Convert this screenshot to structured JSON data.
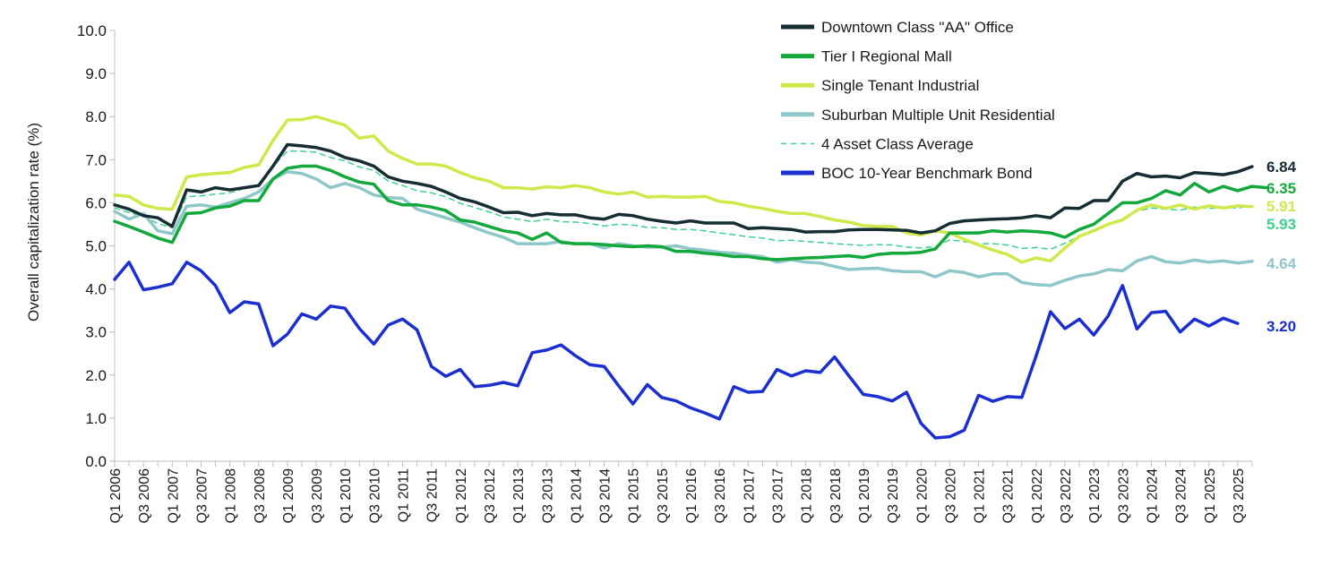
{
  "chart_data": {
    "type": "line",
    "title": "",
    "xlabel": "",
    "ylabel": "Overall capitalization rate (%)",
    "ylim": [
      0,
      10
    ],
    "yticks": [
      "0.0",
      "1.0",
      "2.0",
      "3.0",
      "4.0",
      "5.0",
      "6.0",
      "7.0",
      "8.0",
      "9.0",
      "10.0"
    ],
    "x_tick_labels": [
      "Q1 2006",
      "Q3 2006",
      "Q1 2007",
      "Q3 2007",
      "Q1 2008",
      "Q3 2008",
      "Q1 2009",
      "Q3 2009",
      "Q1 2010",
      "Q3 2010",
      "Q1 2011",
      "Q3 2011",
      "Q1 2012",
      "Q3 2012",
      "Q1 2013",
      "Q3 2013",
      "Q1 2014",
      "Q3 2014",
      "Q1 2015",
      "Q3 2015",
      "Q1 2016",
      "Q3 2016",
      "Q1 2017",
      "Q3 2017",
      "Q1 2018",
      "Q3 2018",
      "Q1 2019",
      "Q3 2019",
      "Q1 2020",
      "Q3 2020",
      "Q1 2021",
      "Q3 2021",
      "Q1 2022",
      "Q3 2022",
      "Q1 2023",
      "Q3 2023",
      "Q1 2024",
      "Q3 2024",
      "Q1 2025",
      "Q3 2025"
    ],
    "legend_position": "top-right",
    "series": [
      {
        "name": "Downtown Class \"AA\" Office",
        "color": "#152d33",
        "dashed": false,
        "end_label": "6.84",
        "values": [
          5.95,
          5.85,
          5.7,
          5.65,
          5.45,
          6.3,
          6.25,
          6.35,
          6.3,
          6.35,
          6.4,
          6.85,
          7.35,
          7.32,
          7.28,
          7.2,
          7.05,
          6.97,
          6.85,
          6.6,
          6.5,
          6.45,
          6.38,
          6.25,
          6.1,
          6.02,
          5.9,
          5.77,
          5.78,
          5.7,
          5.75,
          5.72,
          5.72,
          5.65,
          5.62,
          5.73,
          5.7,
          5.62,
          5.57,
          5.53,
          5.58,
          5.53,
          5.53,
          5.53,
          5.4,
          5.42,
          5.4,
          5.38,
          5.32,
          5.33,
          5.33,
          5.37,
          5.38,
          5.38,
          5.37,
          5.36,
          5.3,
          5.35,
          5.52,
          5.58,
          5.6,
          5.62,
          5.63,
          5.65,
          5.7,
          5.65,
          5.88,
          5.87,
          6.05,
          6.05,
          6.5,
          6.68,
          6.6,
          6.62,
          6.58,
          6.7,
          6.68,
          6.65,
          6.72,
          6.84
        ]
      },
      {
        "name": "Tier I Regional Mall",
        "color": "#12a83b",
        "dashed": false,
        "end_label": "6.35",
        "values": [
          5.57,
          5.45,
          5.32,
          5.18,
          5.08,
          5.75,
          5.77,
          5.88,
          5.92,
          6.05,
          6.05,
          6.55,
          6.8,
          6.85,
          6.85,
          6.75,
          6.6,
          6.48,
          6.43,
          6.05,
          5.95,
          5.95,
          5.9,
          5.82,
          5.6,
          5.55,
          5.45,
          5.35,
          5.3,
          5.15,
          5.3,
          5.08,
          5.05,
          5.05,
          5.03,
          5.0,
          4.98,
          5.0,
          4.98,
          4.87,
          4.87,
          4.83,
          4.8,
          4.75,
          4.75,
          4.7,
          4.68,
          4.7,
          4.72,
          4.73,
          4.75,
          4.77,
          4.73,
          4.8,
          4.83,
          4.83,
          4.85,
          4.93,
          5.3,
          5.3,
          5.3,
          5.35,
          5.32,
          5.35,
          5.33,
          5.3,
          5.2,
          5.38,
          5.5,
          5.75,
          6.0,
          6.0,
          6.1,
          6.28,
          6.18,
          6.45,
          6.25,
          6.38,
          6.28,
          6.38,
          6.35
        ]
      },
      {
        "name": "Single Tenant Industrial",
        "color": "#cfe84a",
        "dashed": false,
        "end_label": "5.91",
        "values": [
          6.18,
          6.15,
          5.95,
          5.87,
          5.85,
          6.6,
          6.65,
          6.68,
          6.7,
          6.82,
          6.88,
          7.45,
          7.92,
          7.93,
          8.0,
          7.9,
          7.8,
          7.5,
          7.55,
          7.2,
          7.03,
          6.9,
          6.9,
          6.85,
          6.7,
          6.58,
          6.5,
          6.35,
          6.35,
          6.32,
          6.37,
          6.35,
          6.4,
          6.35,
          6.25,
          6.2,
          6.25,
          6.13,
          6.15,
          6.13,
          6.13,
          6.15,
          6.03,
          6.0,
          5.92,
          5.87,
          5.8,
          5.75,
          5.75,
          5.68,
          5.6,
          5.55,
          5.47,
          5.45,
          5.45,
          5.3,
          5.25,
          5.35,
          5.3,
          5.15,
          5.02,
          4.9,
          4.8,
          4.62,
          4.72,
          4.65,
          4.95,
          5.22,
          5.35,
          5.5,
          5.6,
          5.83,
          5.95,
          5.87,
          5.95,
          5.85,
          5.93,
          5.88,
          5.93,
          5.91
        ]
      },
      {
        "name": "Suburban Multiple Unit Residential",
        "color": "#8fc7c9",
        "dashed": false,
        "end_label": "4.64",
        "values": [
          5.8,
          5.62,
          5.75,
          5.35,
          5.28,
          5.92,
          5.95,
          5.9,
          6.0,
          6.1,
          6.25,
          6.55,
          6.72,
          6.68,
          6.55,
          6.35,
          6.45,
          6.35,
          6.18,
          6.12,
          6.1,
          5.85,
          5.75,
          5.65,
          5.55,
          5.42,
          5.3,
          5.2,
          5.05,
          5.05,
          5.05,
          5.1,
          5.05,
          5.05,
          4.95,
          5.05,
          5.0,
          4.97,
          4.97,
          5.0,
          4.93,
          4.9,
          4.85,
          4.83,
          4.78,
          4.75,
          4.62,
          4.68,
          4.62,
          4.6,
          4.52,
          4.45,
          4.47,
          4.48,
          4.42,
          4.4,
          4.4,
          4.28,
          4.42,
          4.38,
          4.28,
          4.35,
          4.35,
          4.15,
          4.1,
          4.08,
          4.2,
          4.3,
          4.35,
          4.45,
          4.42,
          4.65,
          4.75,
          4.63,
          4.6,
          4.67,
          4.62,
          4.65,
          4.6,
          4.64
        ]
      },
      {
        "name": "4 Asset Class Average",
        "color": "#3ed18e",
        "dashed": true,
        "end_label": "5.93",
        "values": [
          5.88,
          5.77,
          5.68,
          5.52,
          5.42,
          6.14,
          6.16,
          6.2,
          6.23,
          6.33,
          6.4,
          6.85,
          7.2,
          7.2,
          7.17,
          7.05,
          6.97,
          6.83,
          6.75,
          6.5,
          6.4,
          6.28,
          6.23,
          6.14,
          5.99,
          5.89,
          5.79,
          5.67,
          5.62,
          5.56,
          5.62,
          5.56,
          5.55,
          5.52,
          5.46,
          5.5,
          5.48,
          5.43,
          5.42,
          5.38,
          5.38,
          5.35,
          5.3,
          5.26,
          5.21,
          5.18,
          5.12,
          5.13,
          5.1,
          5.08,
          5.05,
          5.03,
          5.01,
          5.03,
          5.02,
          4.97,
          4.95,
          4.98,
          5.14,
          5.1,
          5.05,
          5.05,
          5.02,
          4.94,
          4.96,
          4.92,
          5.06,
          5.22,
          5.38,
          5.5,
          5.63,
          5.8,
          5.88,
          5.85,
          5.83,
          5.9,
          5.87,
          5.89,
          5.88,
          5.93
        ]
      },
      {
        "name": "BOC 10-Year Benchmark Bond",
        "color": "#1b2fd0",
        "dashed": false,
        "end_label": "3.20",
        "values": [
          4.22,
          4.62,
          3.98,
          4.04,
          4.12,
          4.62,
          4.42,
          4.08,
          3.45,
          3.7,
          3.65,
          2.68,
          2.95,
          3.42,
          3.3,
          3.6,
          3.55,
          3.08,
          2.72,
          3.16,
          3.3,
          3.05,
          2.2,
          1.97,
          2.13,
          1.73,
          1.76,
          1.83,
          1.75,
          2.52,
          2.58,
          2.7,
          2.45,
          2.24,
          2.2,
          1.75,
          1.33,
          1.78,
          1.48,
          1.4,
          1.24,
          1.12,
          0.98,
          1.73,
          1.6,
          1.62,
          2.13,
          1.98,
          2.1,
          2.06,
          2.42,
          1.98,
          1.55,
          1.5,
          1.4,
          1.6,
          0.88,
          0.54,
          0.57,
          0.72,
          1.53,
          1.39,
          1.5,
          1.48,
          2.45,
          3.47,
          3.08,
          3.3,
          2.93,
          3.37,
          4.08,
          3.07,
          3.45,
          3.48,
          3.0,
          3.3,
          3.14,
          3.32,
          3.2
        ]
      }
    ]
  }
}
